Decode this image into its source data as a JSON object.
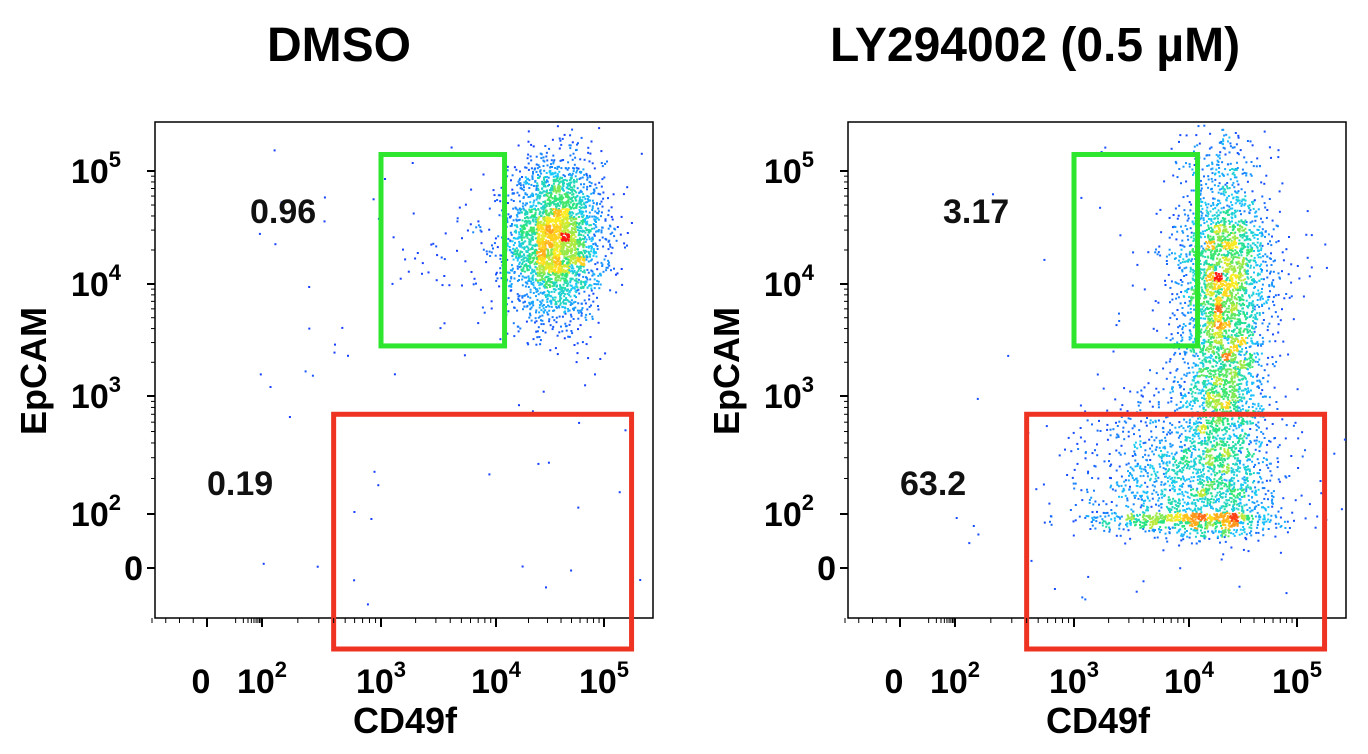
{
  "chart_data": [
    {
      "type": "scatter",
      "title": "DMSO",
      "xlabel": "CD49f",
      "ylabel": "EpCAM",
      "x_ticks": [
        "0",
        "10^2",
        "10^3",
        "10^4",
        "10^5"
      ],
      "y_ticks": [
        "0",
        "10^2",
        "10^3",
        "10^4",
        "10^5"
      ],
      "scale": "biexponential",
      "gates": [
        {
          "color": "#2ee62e",
          "label": "0.96",
          "x_range": [
            1000,
            12000
          ],
          "y_range": [
            2800,
            140000
          ]
        },
        {
          "color": "#ee3322",
          "label": "0.19",
          "x_range": [
            400,
            180000
          ],
          "y_range": [
            -60,
            700
          ]
        }
      ],
      "populations": [
        {
          "cx": 35000,
          "cy": 25000,
          "sx": 0.22,
          "sy": 0.35,
          "n": 3000
        },
        {
          "cx": 8000,
          "cy": 20000,
          "sx": 0.35,
          "sy": 0.3,
          "n": 80
        }
      ]
    },
    {
      "type": "scatter",
      "title": "LY294002 (0.5 µM)",
      "xlabel": "CD49f",
      "ylabel": "EpCAM",
      "x_ticks": [
        "0",
        "10^2",
        "10^3",
        "10^4",
        "10^5"
      ],
      "y_ticks": [
        "0",
        "10^2",
        "10^3",
        "10^4",
        "10^5"
      ],
      "scale": "biexponential",
      "gates": [
        {
          "color": "#2ee62e",
          "label": "3.17",
          "x_range": [
            1000,
            12000
          ],
          "y_range": [
            2800,
            140000
          ]
        },
        {
          "color": "#ee3322",
          "label": "63.2",
          "x_range": [
            400,
            180000
          ],
          "y_range": [
            -60,
            700
          ]
        }
      ],
      "populations": [
        {
          "cx": 20000,
          "cy": 3000,
          "sx": 0.2,
          "sy": 0.9,
          "n": 3200
        },
        {
          "cx": 9000,
          "cy": 150,
          "sx": 0.45,
          "sy": 0.45,
          "n": 1600
        },
        {
          "cx": 22000,
          "cy": 15000,
          "sx": 0.25,
          "sy": 0.3,
          "n": 700
        }
      ]
    }
  ],
  "colors": {
    "density_low": "#1a2cff",
    "density_mid": "#19d7ff",
    "density_high": "#ff1a1a"
  }
}
